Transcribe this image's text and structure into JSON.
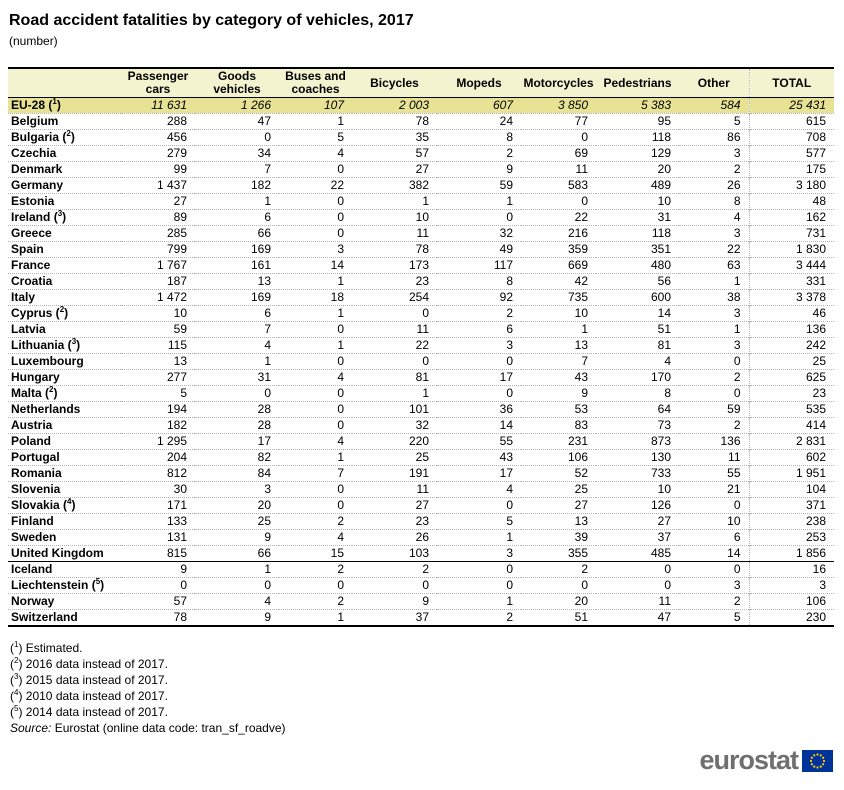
{
  "header": {
    "title": "Road accident fatalities by category of vehicles, 2017",
    "subtitle": "(number)"
  },
  "chart_data": {
    "type": "table",
    "title": "Road accident fatalities by category of vehicles, 2017",
    "unit": "number",
    "columns": [
      "Passenger cars",
      "Goods vehicles",
      "Buses and coaches",
      "Bicycles",
      "Mopeds",
      "Motorcycles",
      "Pedestrians",
      "Other",
      "TOTAL"
    ],
    "rows": [
      {
        "label": "EU-28",
        "marker": "1",
        "style": "eu",
        "values": [
          "11 631",
          "1 266",
          "107",
          "2 003",
          "607",
          "3 850",
          "5 383",
          "584",
          "25 431"
        ]
      },
      {
        "label": "Belgium",
        "values": [
          "288",
          "47",
          "1",
          "78",
          "24",
          "77",
          "95",
          "5",
          "615"
        ]
      },
      {
        "label": "Bulgaria",
        "marker": "2",
        "values": [
          "456",
          "0",
          "5",
          "35",
          "8",
          "0",
          "118",
          "86",
          "708"
        ]
      },
      {
        "label": "Czechia",
        "values": [
          "279",
          "34",
          "4",
          "57",
          "2",
          "69",
          "129",
          "3",
          "577"
        ]
      },
      {
        "label": "Denmark",
        "values": [
          "99",
          "7",
          "0",
          "27",
          "9",
          "11",
          "20",
          "2",
          "175"
        ]
      },
      {
        "label": "Germany",
        "values": [
          "1 437",
          "182",
          "22",
          "382",
          "59",
          "583",
          "489",
          "26",
          "3 180"
        ]
      },
      {
        "label": "Estonia",
        "values": [
          "27",
          "1",
          "0",
          "1",
          "1",
          "0",
          "10",
          "8",
          "48"
        ]
      },
      {
        "label": "Ireland",
        "marker": "3",
        "values": [
          "89",
          "6",
          "0",
          "10",
          "0",
          "22",
          "31",
          "4",
          "162"
        ]
      },
      {
        "label": "Greece",
        "values": [
          "285",
          "66",
          "0",
          "11",
          "32",
          "216",
          "118",
          "3",
          "731"
        ]
      },
      {
        "label": "Spain",
        "values": [
          "799",
          "169",
          "3",
          "78",
          "49",
          "359",
          "351",
          "22",
          "1 830"
        ]
      },
      {
        "label": "France",
        "values": [
          "1 767",
          "161",
          "14",
          "173",
          "117",
          "669",
          "480",
          "63",
          "3 444"
        ]
      },
      {
        "label": "Croatia",
        "values": [
          "187",
          "13",
          "1",
          "23",
          "8",
          "42",
          "56",
          "1",
          "331"
        ]
      },
      {
        "label": "Italy",
        "values": [
          "1 472",
          "169",
          "18",
          "254",
          "92",
          "735",
          "600",
          "38",
          "3 378"
        ]
      },
      {
        "label": "Cyprus",
        "marker": "2",
        "values": [
          "10",
          "6",
          "1",
          "0",
          "2",
          "10",
          "14",
          "3",
          "46"
        ]
      },
      {
        "label": "Latvia",
        "values": [
          "59",
          "7",
          "0",
          "11",
          "6",
          "1",
          "51",
          "1",
          "136"
        ]
      },
      {
        "label": "Lithuania",
        "marker": "3",
        "values": [
          "115",
          "4",
          "1",
          "22",
          "3",
          "13",
          "81",
          "3",
          "242"
        ]
      },
      {
        "label": "Luxembourg",
        "values": [
          "13",
          "1",
          "0",
          "0",
          "0",
          "7",
          "4",
          "0",
          "25"
        ]
      },
      {
        "label": "Hungary",
        "values": [
          "277",
          "31",
          "4",
          "81",
          "17",
          "43",
          "170",
          "2",
          "625"
        ]
      },
      {
        "label": "Malta",
        "marker": "2",
        "values": [
          "5",
          "0",
          "0",
          "1",
          "0",
          "9",
          "8",
          "0",
          "23"
        ]
      },
      {
        "label": "Netherlands",
        "values": [
          "194",
          "28",
          "0",
          "101",
          "36",
          "53",
          "64",
          "59",
          "535"
        ]
      },
      {
        "label": "Austria",
        "values": [
          "182",
          "28",
          "0",
          "32",
          "14",
          "83",
          "73",
          "2",
          "414"
        ]
      },
      {
        "label": "Poland",
        "values": [
          "1 295",
          "17",
          "4",
          "220",
          "55",
          "231",
          "873",
          "136",
          "2 831"
        ]
      },
      {
        "label": "Portugal",
        "values": [
          "204",
          "82",
          "1",
          "25",
          "43",
          "106",
          "130",
          "11",
          "602"
        ]
      },
      {
        "label": "Romania",
        "values": [
          "812",
          "84",
          "7",
          "191",
          "17",
          "52",
          "733",
          "55",
          "1 951"
        ]
      },
      {
        "label": "Slovenia",
        "values": [
          "30",
          "3",
          "0",
          "11",
          "4",
          "25",
          "10",
          "21",
          "104"
        ]
      },
      {
        "label": "Slovakia",
        "marker": "4",
        "values": [
          "171",
          "20",
          "0",
          "27",
          "0",
          "27",
          "126",
          "0",
          "371"
        ]
      },
      {
        "label": "Finland",
        "values": [
          "133",
          "25",
          "2",
          "23",
          "5",
          "13",
          "27",
          "10",
          "238"
        ]
      },
      {
        "label": "Sweden",
        "values": [
          "131",
          "9",
          "4",
          "26",
          "1",
          "39",
          "37",
          "6",
          "253"
        ]
      },
      {
        "label": "United Kingdom",
        "values": [
          "815",
          "66",
          "15",
          "103",
          "3",
          "355",
          "485",
          "14",
          "1 856"
        ]
      },
      {
        "label": "Iceland",
        "style": "efta-first",
        "values": [
          "9",
          "1",
          "2",
          "2",
          "0",
          "2",
          "0",
          "0",
          "16"
        ]
      },
      {
        "label": "Liechtenstein",
        "marker": "5",
        "values": [
          "0",
          "0",
          "0",
          "0",
          "0",
          "0",
          "0",
          "3",
          "3"
        ]
      },
      {
        "label": "Norway",
        "values": [
          "57",
          "4",
          "2",
          "9",
          "1",
          "20",
          "11",
          "2",
          "106"
        ]
      },
      {
        "label": "Switzerland",
        "values": [
          "78",
          "9",
          "1",
          "37",
          "2",
          "51",
          "47",
          "5",
          "230"
        ]
      }
    ]
  },
  "footnotes": [
    {
      "marker": "1",
      "text": "Estimated."
    },
    {
      "marker": "2",
      "text": "2016 data instead of 2017."
    },
    {
      "marker": "3",
      "text": "2015 data instead of 2017."
    },
    {
      "marker": "4",
      "text": "2010 data instead of 2017."
    },
    {
      "marker": "5",
      "text": "2014 data instead of 2017."
    }
  ],
  "source": {
    "prefix": "Source:",
    "text": "Eurostat (online data code: tran_sf_roadve)"
  },
  "logo": {
    "text": "eurostat"
  },
  "colors": {
    "header_bg": "#F4F3D0",
    "eu_row_bg": "#E7E294",
    "flag_blue": "#003399",
    "flag_stars": "#FFCC00",
    "logo_gray": "#6f6f6f"
  }
}
